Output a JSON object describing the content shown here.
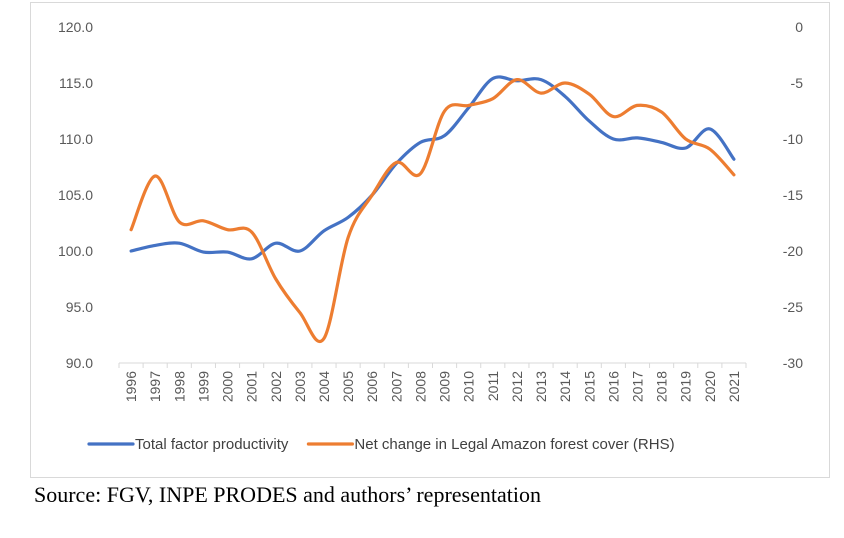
{
  "chart_data": {
    "type": "line",
    "title": "",
    "x": [
      "1996",
      "1997",
      "1998",
      "1999",
      "2000",
      "2001",
      "2002",
      "2003",
      "2004",
      "2005",
      "2006",
      "2007",
      "2008",
      "2009",
      "2010",
      "2011",
      "2012",
      "2013",
      "2014",
      "2015",
      "2016",
      "2017",
      "2018",
      "2019",
      "2020",
      "2021"
    ],
    "left_axis": {
      "ticks": [
        "120.0",
        "115.0",
        "110.0",
        "105.0",
        "100.0",
        "95.0",
        "90.0"
      ],
      "ylim": [
        90,
        120
      ]
    },
    "right_axis": {
      "ticks": [
        "0",
        "-5",
        "-10",
        "-15",
        "-20",
        "-25",
        "-30"
      ],
      "ylim": [
        -30,
        0
      ]
    },
    "series": [
      {
        "name": "Total factor productivity",
        "axis": "left",
        "color": "#4472C4",
        "values": [
          100.0,
          100.5,
          100.7,
          99.9,
          99.9,
          99.3,
          100.7,
          100.0,
          101.8,
          103.0,
          105.0,
          107.8,
          109.7,
          110.3,
          112.8,
          115.4,
          115.2,
          115.3,
          113.8,
          111.6,
          110.0,
          110.1,
          109.7,
          109.2,
          110.9,
          108.2
        ]
      },
      {
        "name": "Net change in Legal Amazon forest cover (RHS)",
        "axis": "right",
        "color": "#ED7D31",
        "values": [
          -18.1,
          -13.3,
          -17.4,
          -17.3,
          -18.1,
          -18.3,
          -22.5,
          -25.5,
          -27.8,
          -18.8,
          -15.0,
          -12.1,
          -13.1,
          -7.5,
          -7.0,
          -6.4,
          -4.7,
          -5.9,
          -5.0,
          -6.0,
          -8.0,
          -7.0,
          -7.6,
          -10.0,
          -10.9,
          -13.2
        ]
      }
    ],
    "legend_position": "bottom",
    "grid": false
  },
  "source": "Source: FGV, INPE PRODES and authors’ representation"
}
